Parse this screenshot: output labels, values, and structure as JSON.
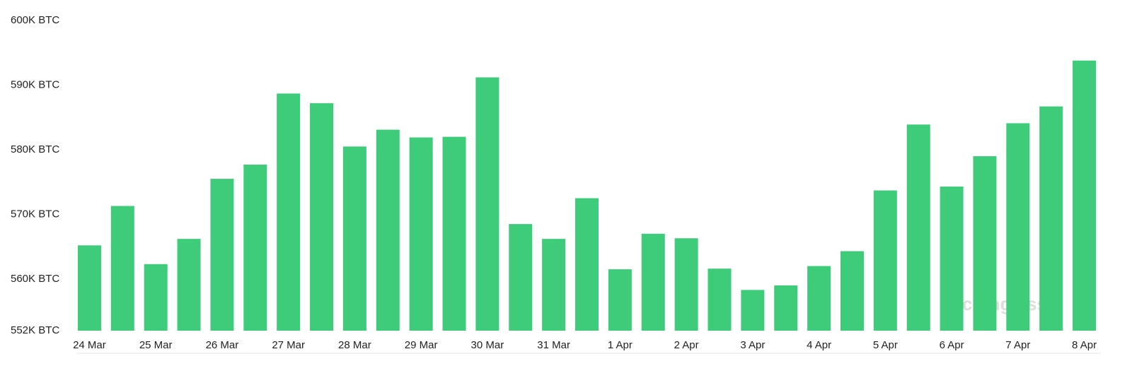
{
  "chart_data": {
    "type": "bar",
    "color": "#3ecc7a",
    "categories": [
      "24 Mar",
      null,
      "25 Mar",
      null,
      "26 Mar",
      null,
      "27 Mar",
      null,
      "28 Mar",
      null,
      "29 Mar",
      null,
      "30 Mar",
      null,
      "31 Mar",
      null,
      "1 Apr",
      null,
      "2 Apr",
      null,
      "3 Apr",
      null,
      "4 Apr",
      null,
      "5 Apr",
      null,
      "6 Apr",
      null,
      "7 Apr",
      null,
      "8 Apr"
    ],
    "values": [
      565.2,
      571.3,
      562.3,
      566.2,
      575.5,
      577.7,
      588.7,
      587.2,
      580.5,
      583.1,
      581.9,
      582.0,
      591.2,
      568.5,
      566.2,
      572.5,
      561.5,
      567.0,
      566.3,
      561.6,
      558.3,
      559.0,
      562.0,
      564.3,
      573.7,
      583.9,
      574.3,
      579.0,
      584.1,
      586.7,
      593.8
    ],
    "ylim": [
      552,
      600
    ],
    "yticks": [
      {
        "value": 552,
        "label": "552K BTC"
      },
      {
        "value": 560,
        "label": "560K BTC"
      },
      {
        "value": 570,
        "label": "570K BTC"
      },
      {
        "value": 580,
        "label": "580K BTC"
      },
      {
        "value": 590,
        "label": "590K BTC"
      },
      {
        "value": 600,
        "label": "600K BTC"
      }
    ],
    "watermark": "coinglass"
  }
}
